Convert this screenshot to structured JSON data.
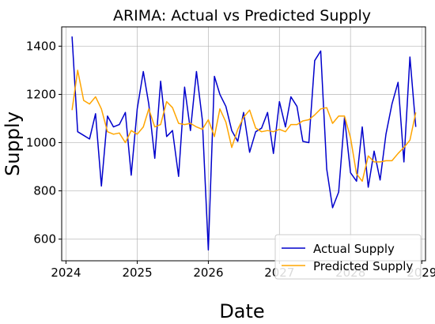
{
  "chart_data": {
    "type": "line",
    "title": "ARIMA: Actual vs Predicted Supply",
    "xlabel": "Date",
    "ylabel": "Supply",
    "x_ticks": [
      "2024",
      "2025",
      "2026",
      "2027",
      "2028",
      "2029"
    ],
    "y_ticks": [
      "600",
      "800",
      "1000",
      "1200",
      "1400"
    ],
    "xlim": [
      "2023-12-10",
      "2029-01-20"
    ],
    "ylim": [
      510,
      1480
    ],
    "grid": true,
    "legend_position": "lower-right",
    "dates": [
      "2024-02-01",
      "2024-03-01",
      "2024-04-01",
      "2024-05-01",
      "2024-06-01",
      "2024-07-01",
      "2024-08-01",
      "2024-09-01",
      "2024-10-01",
      "2024-11-01",
      "2024-12-01",
      "2025-01-01",
      "2025-02-01",
      "2025-03-01",
      "2025-04-01",
      "2025-05-01",
      "2025-06-01",
      "2025-07-01",
      "2025-08-01",
      "2025-09-01",
      "2025-10-01",
      "2025-11-01",
      "2025-12-01",
      "2026-01-01",
      "2026-02-01",
      "2026-03-01",
      "2026-04-01",
      "2026-05-01",
      "2026-06-01",
      "2026-07-01",
      "2026-08-01",
      "2026-09-01",
      "2026-10-01",
      "2026-11-01",
      "2026-12-01",
      "2027-01-01",
      "2027-02-01",
      "2027-03-01",
      "2027-04-01",
      "2027-05-01",
      "2027-06-01",
      "2027-07-01",
      "2027-08-01",
      "2027-09-01",
      "2027-10-01",
      "2027-11-01",
      "2027-12-01",
      "2028-01-01",
      "2028-02-01",
      "2028-03-01",
      "2028-04-01",
      "2028-05-01",
      "2028-06-01",
      "2028-07-01",
      "2028-08-01",
      "2028-09-01",
      "2028-10-01",
      "2028-11-01",
      "2028-12-01"
    ],
    "series": [
      {
        "name": "Actual Supply",
        "color": "#0000cc",
        "values": [
          1440,
          1045,
          1030,
          1015,
          1120,
          820,
          1110,
          1065,
          1075,
          1125,
          865,
          1140,
          1295,
          1160,
          935,
          1255,
          1025,
          1050,
          860,
          1230,
          1050,
          1295,
          1095,
          555,
          1275,
          1200,
          1150,
          1050,
          1005,
          1125,
          960,
          1045,
          1060,
          1125,
          955,
          1170,
          1065,
          1190,
          1150,
          1005,
          1000,
          1340,
          1380,
          890,
          730,
          795,
          1105,
          875,
          840,
          1065,
          815,
          965,
          845,
          1035,
          1160,
          1250,
          920,
          1355,
          1065
        ]
      },
      {
        "name": "Predicted Supply",
        "color": "#ffa500",
        "values": [
          1135,
          1300,
          1175,
          1160,
          1190,
          1140,
          1045,
          1035,
          1040,
          1000,
          1050,
          1035,
          1065,
          1140,
          1065,
          1075,
          1170,
          1145,
          1080,
          1075,
          1080,
          1065,
          1055,
          1095,
          1025,
          1140,
          1085,
          980,
          1055,
          1105,
          1135,
          1060,
          1045,
          1050,
          1045,
          1055,
          1045,
          1075,
          1075,
          1090,
          1095,
          1115,
          1140,
          1145,
          1080,
          1110,
          1110,
          1020,
          870,
          840,
          945,
          920,
          920,
          925,
          925,
          955,
          980,
          1010,
          1125
        ]
      }
    ]
  }
}
